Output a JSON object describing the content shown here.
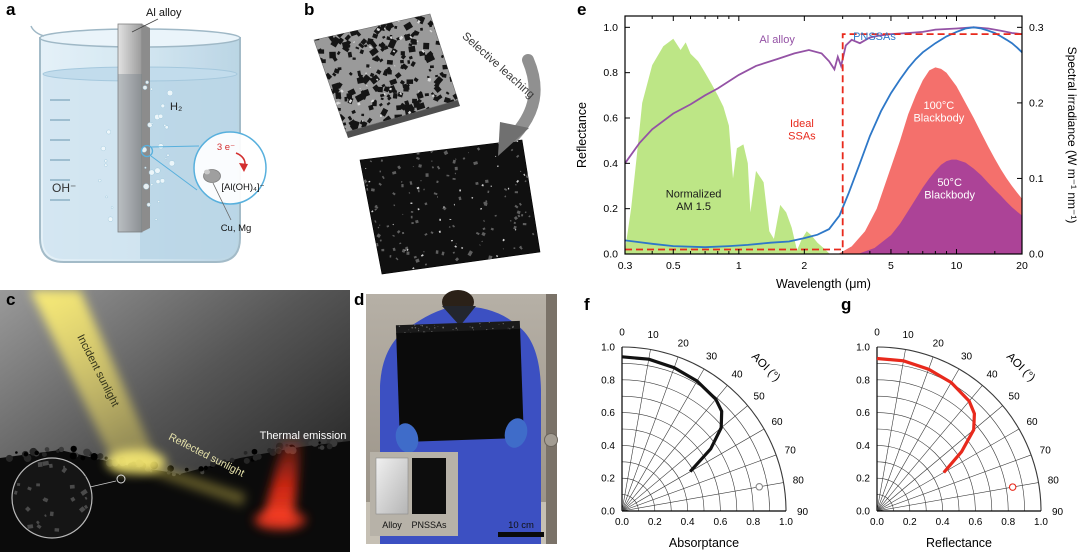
{
  "panels": {
    "a": {
      "label": "a",
      "al_alloy": "Al alloy",
      "h2": "H₂",
      "oh": "OH⁻",
      "electrons": "3 e⁻",
      "aloh4": "[Al(OH)₄]⁻",
      "cu_mg": "Cu, Mg"
    },
    "b": {
      "label": "b",
      "arrow_text": "Selective leaching"
    },
    "c": {
      "label": "c",
      "incident": "Incident sunlight",
      "reflected": "Reflected sunlight",
      "thermal": "Thermal emission"
    },
    "d": {
      "label": "d",
      "inset_left": "Alloy",
      "inset_right": "PNSSAs",
      "scale_bar": "10 cm"
    },
    "e": {
      "label": "e"
    },
    "f": {
      "label": "f"
    },
    "g": {
      "label": "g"
    }
  },
  "chart_data": [
    {
      "id": "spectral",
      "type": "line",
      "x_axis": {
        "label": "Wavelength (μm)",
        "scale": "log",
        "min": 0.3,
        "max": 20,
        "ticks": [
          0.3,
          0.5,
          1,
          2,
          5,
          10,
          20
        ]
      },
      "y_left": {
        "label": "Reflectance",
        "min": 0,
        "max": 1.05,
        "ticks": [
          0,
          0.2,
          0.4,
          0.6,
          0.8,
          1
        ]
      },
      "y_right": {
        "label": "Spectral irradiance (W m⁻¹ nm⁻¹)",
        "min": 0,
        "max": 0.315,
        "ticks": [
          0,
          0.1,
          0.2,
          0.3
        ]
      },
      "areas": [
        {
          "name": "Normalized AM 1.5",
          "color": "#b9e57f",
          "opacity": 0.95,
          "axis": "right",
          "points": [
            [
              0.3,
              0.005
            ],
            [
              0.32,
              0.06
            ],
            [
              0.34,
              0.13
            ],
            [
              0.36,
              0.2
            ],
            [
              0.4,
              0.25
            ],
            [
              0.45,
              0.275
            ],
            [
              0.5,
              0.285
            ],
            [
              0.54,
              0.27
            ],
            [
              0.57,
              0.28
            ],
            [
              0.6,
              0.265
            ],
            [
              0.65,
              0.255
            ],
            [
              0.7,
              0.24
            ],
            [
              0.75,
              0.225
            ],
            [
              0.8,
              0.21
            ],
            [
              0.85,
              0.195
            ],
            [
              0.9,
              0.17
            ],
            [
              0.94,
              0.1
            ],
            [
              0.98,
              0.14
            ],
            [
              1.05,
              0.145
            ],
            [
              1.1,
              0.12
            ],
            [
              1.13,
              0.055
            ],
            [
              1.2,
              0.11
            ],
            [
              1.3,
              0.095
            ],
            [
              1.38,
              0.03
            ],
            [
              1.45,
              0.02
            ],
            [
              1.55,
              0.065
            ],
            [
              1.65,
              0.055
            ],
            [
              1.75,
              0.035
            ],
            [
              1.85,
              0.005
            ],
            [
              1.95,
              0.02
            ],
            [
              2.05,
              0.03
            ],
            [
              2.15,
              0.025
            ],
            [
              2.3,
              0.015
            ],
            [
              2.45,
              0.008
            ],
            [
              2.6,
              0.001
            ]
          ]
        },
        {
          "name": "100°C Blackbody",
          "color": "#f3645f",
          "opacity": 0.92,
          "axis": "right",
          "points": [
            [
              2.9,
              0.001
            ],
            [
              3.3,
              0.01
            ],
            [
              3.8,
              0.03
            ],
            [
              4.3,
              0.06
            ],
            [
              5,
              0.115
            ],
            [
              5.5,
              0.15
            ],
            [
              6,
              0.185
            ],
            [
              6.5,
              0.21
            ],
            [
              7,
              0.23
            ],
            [
              7.5,
              0.243
            ],
            [
              8,
              0.247
            ],
            [
              8.5,
              0.245
            ],
            [
              9,
              0.24
            ],
            [
              10,
              0.222
            ],
            [
              11,
              0.2
            ],
            [
              12,
              0.18
            ],
            [
              13,
              0.16
            ],
            [
              14,
              0.142
            ],
            [
              15,
              0.126
            ],
            [
              16,
              0.112
            ],
            [
              17,
              0.1
            ],
            [
              18,
              0.09
            ],
            [
              19,
              0.081
            ],
            [
              20,
              0.073
            ]
          ]
        },
        {
          "name": "50°C Blackbody",
          "color": "#a8409a",
          "opacity": 0.95,
          "axis": "right",
          "points": [
            [
              3.6,
              0.001
            ],
            [
              4.2,
              0.008
            ],
            [
              5,
              0.025
            ],
            [
              5.5,
              0.04
            ],
            [
              6,
              0.057
            ],
            [
              6.5,
              0.073
            ],
            [
              7,
              0.088
            ],
            [
              7.5,
              0.1
            ],
            [
              8,
              0.11
            ],
            [
              8.5,
              0.118
            ],
            [
              9,
              0.123
            ],
            [
              9.5,
              0.125
            ],
            [
              10,
              0.125
            ],
            [
              11,
              0.121
            ],
            [
              12,
              0.113
            ],
            [
              13,
              0.104
            ],
            [
              14,
              0.094
            ],
            [
              15,
              0.085
            ],
            [
              16,
              0.077
            ],
            [
              17,
              0.069
            ],
            [
              18,
              0.062
            ],
            [
              19,
              0.056
            ],
            [
              20,
              0.051
            ]
          ]
        }
      ],
      "series": [
        {
          "name": "Al alloy",
          "color": "#9452a5",
          "axis": "left",
          "points": [
            [
              0.3,
              0.4
            ],
            [
              0.35,
              0.49
            ],
            [
              0.4,
              0.55
            ],
            [
              0.5,
              0.62
            ],
            [
              0.6,
              0.66
            ],
            [
              0.7,
              0.7
            ],
            [
              0.8,
              0.73
            ],
            [
              1,
              0.79
            ],
            [
              1.2,
              0.83
            ],
            [
              1.5,
              0.86
            ],
            [
              1.8,
              0.885
            ],
            [
              2.1,
              0.9
            ],
            [
              2.4,
              0.885
            ],
            [
              2.6,
              0.85
            ],
            [
              2.75,
              0.815
            ],
            [
              2.85,
              0.87
            ],
            [
              2.95,
              0.83
            ],
            [
              3.1,
              0.92
            ],
            [
              3.3,
              0.945
            ],
            [
              3.6,
              0.93
            ],
            [
              4,
              0.955
            ],
            [
              4.5,
              0.965
            ],
            [
              5,
              0.97
            ],
            [
              6,
              0.975
            ],
            [
              7,
              0.98
            ],
            [
              8,
              0.99
            ],
            [
              10,
              0.995
            ],
            [
              12,
              1
            ],
            [
              14,
              0.995
            ],
            [
              16,
              0.985
            ],
            [
              18,
              0.975
            ],
            [
              20,
              0.97
            ]
          ]
        },
        {
          "name": "PNSSAs",
          "color": "#2e78c8",
          "axis": "left",
          "points": [
            [
              0.3,
              0.06
            ],
            [
              0.4,
              0.045
            ],
            [
              0.5,
              0.035
            ],
            [
              0.7,
              0.03
            ],
            [
              0.9,
              0.035
            ],
            [
              1.1,
              0.04
            ],
            [
              1.4,
              0.05
            ],
            [
              1.7,
              0.055
            ],
            [
              2,
              0.07
            ],
            [
              2.3,
              0.085
            ],
            [
              2.6,
              0.11
            ],
            [
              2.9,
              0.17
            ],
            [
              3.2,
              0.27
            ],
            [
              3.6,
              0.4
            ],
            [
              4,
              0.52
            ],
            [
              4.5,
              0.63
            ],
            [
              5,
              0.71
            ],
            [
              5.5,
              0.77
            ],
            [
              6,
              0.82
            ],
            [
              6.5,
              0.86
            ],
            [
              7,
              0.89
            ],
            [
              8,
              0.93
            ],
            [
              9,
              0.96
            ],
            [
              10,
              0.98
            ],
            [
              11,
              0.995
            ],
            [
              12,
              1
            ],
            [
              13,
              0.995
            ],
            [
              14,
              0.985
            ],
            [
              15,
              0.975
            ],
            [
              16,
              0.96
            ],
            [
              17,
              0.945
            ],
            [
              18,
              0.93
            ],
            [
              19,
              0.91
            ],
            [
              20,
              0.89
            ]
          ]
        },
        {
          "name": "Ideal SSAs",
          "color": "#e8291c",
          "dash": true,
          "axis": "left",
          "points": [
            [
              0.3,
              0.02
            ],
            [
              3,
              0.02
            ],
            [
              3,
              0.97
            ],
            [
              20,
              0.97
            ]
          ]
        }
      ],
      "annotations": [
        {
          "lines": [
            "Al alloy"
          ],
          "color": "#9452a5",
          "x": 1.5,
          "y": 0.93
        },
        {
          "lines": [
            "PNSSAs"
          ],
          "color": "#2e78c8",
          "x": 4.2,
          "y": 0.945
        },
        {
          "lines": [
            "Ideal",
            "SSAs"
          ],
          "color": "#e8291c",
          "x": 1.95,
          "y": 0.56
        },
        {
          "lines": [
            "Normalized",
            "AM 1.5"
          ],
          "color": "#1a1a1a",
          "x": 0.62,
          "y": 0.25
        },
        {
          "lines": [
            "100°C",
            "Blackbody"
          ],
          "color": "#ffffff",
          "x": 8.3,
          "y": 0.64
        },
        {
          "lines": [
            "50°C",
            "Blackbody"
          ],
          "color": "#ffffff",
          "x": 9.3,
          "y": 0.3
        }
      ]
    },
    {
      "id": "aoi-absorptance",
      "type": "polar-line",
      "r_label": "Absorptance",
      "angle_label": "AOI (°)",
      "r_ticks": [
        0,
        0.2,
        0.4,
        0.6,
        0.8,
        1
      ],
      "angle_ticks": [
        0,
        10,
        20,
        30,
        40,
        50,
        60,
        70,
        80,
        90
      ],
      "series": {
        "name": "Absorptance vs AOI",
        "color": "#111111",
        "points": [
          [
            0,
            0.94
          ],
          [
            10,
            0.94
          ],
          [
            20,
            0.93
          ],
          [
            30,
            0.915
          ],
          [
            40,
            0.89
          ],
          [
            45,
            0.86
          ],
          [
            50,
            0.79
          ],
          [
            55,
            0.66
          ],
          [
            60,
            0.48
          ]
        ]
      },
      "marker": {
        "angle": 80,
        "r": 0.85,
        "color": "#888888"
      }
    },
    {
      "id": "aoi-reflectance",
      "type": "polar-line",
      "r_label": "Reflectance",
      "angle_label": "AOI (°)",
      "r_ticks": [
        0,
        0.2,
        0.4,
        0.6,
        0.8,
        1
      ],
      "angle_ticks": [
        0,
        10,
        20,
        30,
        40,
        50,
        60,
        70,
        80,
        90
      ],
      "series": {
        "name": "Reflectance vs AOI",
        "color": "#e8291c",
        "points": [
          [
            0,
            0.93
          ],
          [
            10,
            0.93
          ],
          [
            20,
            0.92
          ],
          [
            30,
            0.905
          ],
          [
            40,
            0.875
          ],
          [
            45,
            0.84
          ],
          [
            50,
            0.77
          ],
          [
            55,
            0.63
          ],
          [
            60,
            0.47
          ]
        ]
      },
      "marker": {
        "angle": 80,
        "r": 0.84,
        "color": "#e8291c"
      }
    }
  ]
}
